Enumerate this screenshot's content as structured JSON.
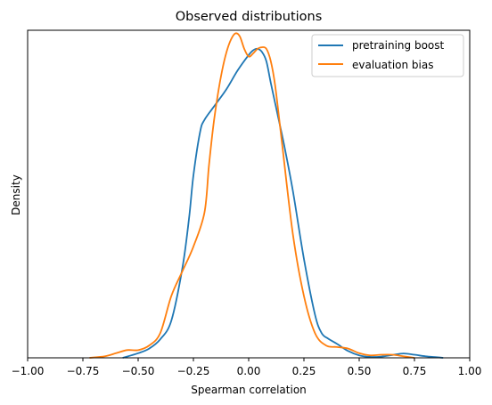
{
  "chart_data": {
    "type": "line",
    "title": "Observed distributions",
    "xlabel": "Spearman correlation",
    "ylabel": "Density",
    "xlim": [
      -1.0,
      1.0
    ],
    "xticks": [
      -1.0,
      -0.75,
      -0.5,
      -0.25,
      0.0,
      0.25,
      0.5,
      0.75,
      1.0
    ],
    "xtick_labels": [
      "−1.00",
      "−0.75",
      "−0.50",
      "−0.25",
      "0.00",
      "0.25",
      "0.50",
      "0.75",
      "1.00"
    ],
    "ylim": [
      0,
      1.06
    ],
    "y_ticks_shown": false,
    "grid": false,
    "legend_position": "top-right",
    "series": [
      {
        "name": "pretraining boost",
        "color": "#1f77b4",
        "x": [
          -0.57,
          -0.5,
          -0.45,
          -0.4,
          -0.35,
          -0.3,
          -0.27,
          -0.25,
          -0.22,
          -0.2,
          -0.15,
          -0.1,
          -0.05,
          0.0,
          0.02,
          0.04,
          0.06,
          0.08,
          0.1,
          0.13,
          0.16,
          0.2,
          0.25,
          0.3,
          0.33,
          0.36,
          0.4,
          0.45,
          0.5,
          0.55,
          0.6,
          0.65,
          0.7,
          0.75,
          0.8,
          0.85,
          0.88
        ],
        "y": [
          0.0,
          0.015,
          0.03,
          0.06,
          0.12,
          0.29,
          0.45,
          0.59,
          0.73,
          0.77,
          0.82,
          0.87,
          0.93,
          0.98,
          0.995,
          1.0,
          0.99,
          0.96,
          0.89,
          0.79,
          0.69,
          0.54,
          0.32,
          0.14,
          0.08,
          0.062,
          0.045,
          0.022,
          0.008,
          0.003,
          0.004,
          0.009,
          0.014,
          0.01,
          0.005,
          0.002,
          0.0
        ]
      },
      {
        "name": "evaluation bias",
        "color": "#ff7f0e",
        "x": [
          -0.72,
          -0.65,
          -0.6,
          -0.55,
          -0.5,
          -0.45,
          -0.4,
          -0.35,
          -0.3,
          -0.25,
          -0.2,
          -0.18,
          -0.16,
          -0.14,
          -0.12,
          -0.1,
          -0.08,
          -0.06,
          -0.04,
          -0.02,
          0.0,
          0.02,
          0.04,
          0.06,
          0.08,
          0.1,
          0.12,
          0.15,
          0.2,
          0.25,
          0.3,
          0.35,
          0.4,
          0.45,
          0.5,
          0.55,
          0.6,
          0.65,
          0.7,
          0.75
        ],
        "y": [
          0.0,
          0.005,
          0.015,
          0.025,
          0.025,
          0.04,
          0.08,
          0.2,
          0.28,
          0.36,
          0.47,
          0.62,
          0.75,
          0.85,
          0.93,
          0.99,
          1.03,
          1.05,
          1.04,
          1.0,
          0.975,
          0.985,
          1.0,
          1.005,
          1.0,
          0.96,
          0.88,
          0.7,
          0.4,
          0.2,
          0.08,
          0.04,
          0.035,
          0.03,
          0.015,
          0.008,
          0.01,
          0.01,
          0.005,
          0.0
        ]
      }
    ]
  }
}
